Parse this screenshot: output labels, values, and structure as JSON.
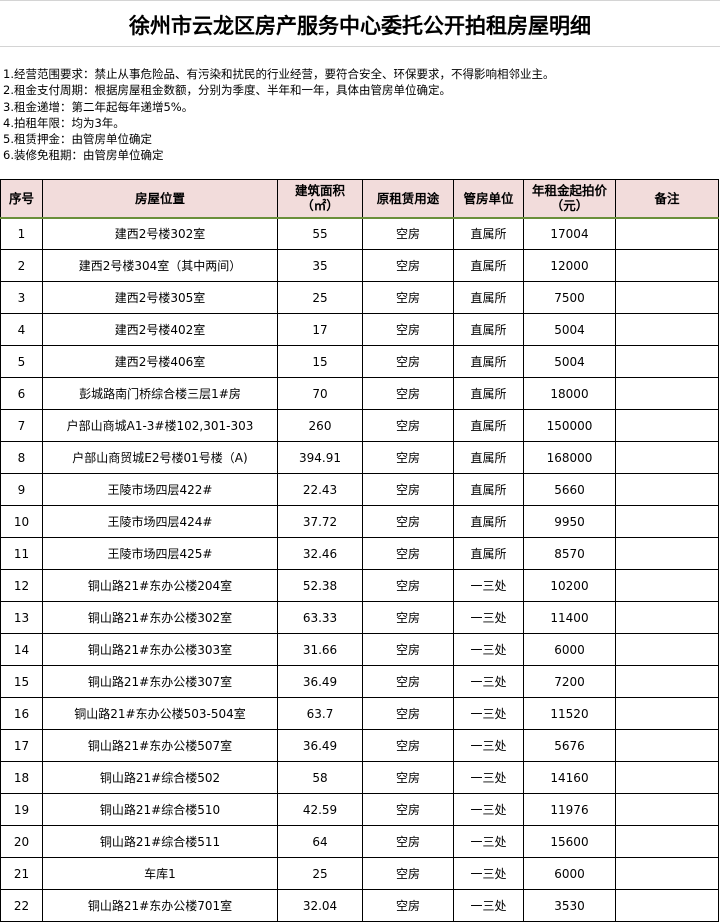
{
  "title": "徐州市云龙区房产服务中心委托公开拍租房屋明细",
  "notes": [
    "1.经营范围要求：禁止从事危险品、有污染和扰民的行业经营，要符合安全、环保要求，不得影响相邻业主。",
    "2.租金支付周期：根据房屋租金数额，分别为季度、半年和一年，具体由管房单位确定。",
    "3.租金递增：第二年起每年递增5%。",
    "4.拍租年限：均为3年。",
    "5.租赁押金：由管房单位确定",
    "6.装修免租期：由管房单位确定"
  ],
  "headers": [
    "序号",
    "房屋位置",
    "建筑面积（㎡）",
    "原租赁用途",
    "管房单位",
    "年租金起拍价（元）",
    "备注"
  ],
  "rows": [
    [
      "1",
      "建西2号楼302室",
      "55",
      "空房",
      "直属所",
      "17004",
      ""
    ],
    [
      "2",
      "建西2号楼304室（其中两间）",
      "35",
      "空房",
      "直属所",
      "12000",
      ""
    ],
    [
      "3",
      "建西2号楼305室",
      "25",
      "空房",
      "直属所",
      "7500",
      ""
    ],
    [
      "4",
      "建西2号楼402室",
      "17",
      "空房",
      "直属所",
      "5004",
      ""
    ],
    [
      "5",
      "建西2号楼406室",
      "15",
      "空房",
      "直属所",
      "5004",
      ""
    ],
    [
      "6",
      "彭城路南门桥综合楼三层1#房",
      "70",
      "空房",
      "直属所",
      "18000",
      ""
    ],
    [
      "7",
      "户部山商城A1-3#楼102,301-303",
      "260",
      "空房",
      "直属所",
      "150000",
      ""
    ],
    [
      "8",
      "户部山商贸城E2号楼01号楼（A)",
      "394.91",
      "空房",
      "直属所",
      "168000",
      ""
    ],
    [
      "9",
      "王陵市场四层422#",
      "22.43",
      "空房",
      "直属所",
      "5660",
      ""
    ],
    [
      "10",
      "王陵市场四层424#",
      "37.72",
      "空房",
      "直属所",
      "9950",
      ""
    ],
    [
      "11",
      "王陵市场四层425#",
      "32.46",
      "空房",
      "直属所",
      "8570",
      ""
    ],
    [
      "12",
      "铜山路21#东办公楼204室",
      "52.38",
      "空房",
      "一三处",
      "10200",
      ""
    ],
    [
      "13",
      "铜山路21#东办公楼302室",
      "63.33",
      "空房",
      "一三处",
      "11400",
      ""
    ],
    [
      "14",
      "铜山路21#东办公楼303室",
      "31.66",
      "空房",
      "一三处",
      "6000",
      ""
    ],
    [
      "15",
      "铜山路21#东办公楼307室",
      "36.49",
      "空房",
      "一三处",
      "7200",
      ""
    ],
    [
      "16",
      "铜山路21#东办公楼503-504室",
      "63.7",
      "空房",
      "一三处",
      "11520",
      ""
    ],
    [
      "17",
      "铜山路21#东办公楼507室",
      "36.49",
      "空房",
      "一三处",
      "5676",
      ""
    ],
    [
      "18",
      "铜山路21#综合楼502",
      "58",
      "空房",
      "一三处",
      "14160",
      ""
    ],
    [
      "19",
      "铜山路21#综合楼510",
      "42.59",
      "空房",
      "一三处",
      "11976",
      ""
    ],
    [
      "20",
      "铜山路21#综合楼511",
      "64",
      "空房",
      "一三处",
      "15600",
      ""
    ],
    [
      "21",
      "车库1",
      "25",
      "空房",
      "一三处",
      "6000",
      ""
    ],
    [
      "22",
      "铜山路21#东办公楼701室",
      "32.04",
      "空房",
      "一三处",
      "3530",
      ""
    ]
  ]
}
